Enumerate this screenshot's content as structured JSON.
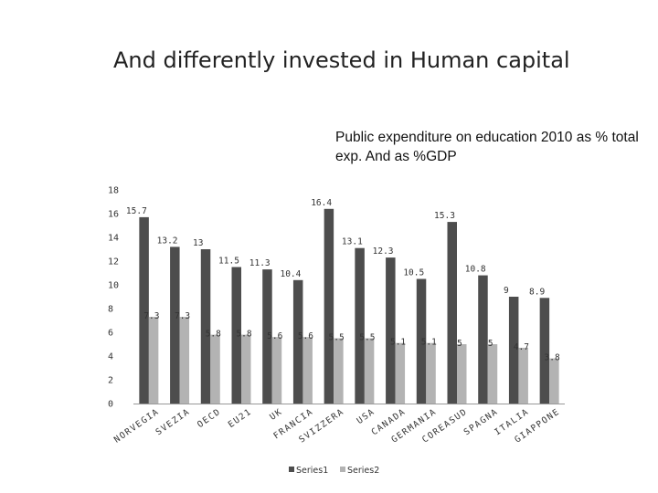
{
  "page": {
    "title": "And differently invested in Human capital",
    "annotation": "Public expenditure on education 2010 as % total exp. And as %GDP"
  },
  "colors": {
    "series1": "#4d4d4d",
    "series2": "#b3b3b3"
  },
  "chart_data": {
    "type": "bar",
    "title": "",
    "xlabel": "",
    "ylabel": "",
    "ylim": [
      0,
      18
    ],
    "yticks": [
      0,
      2,
      4,
      6,
      8,
      10,
      12,
      14,
      16,
      18
    ],
    "grid": false,
    "legend": "bottom",
    "categories": [
      "NORVEGIA",
      "SVEZIA",
      "OECD",
      "EU21",
      "UK",
      "FRANCIA",
      "SVIZZERA",
      "USA",
      "CANADA",
      "GERMANIA",
      "COREASUD",
      "SPAGNA",
      "ITALIA",
      "GIAPPONE"
    ],
    "series": [
      {
        "name": "Series1",
        "values": [
          15.7,
          13.2,
          13,
          11.5,
          11.3,
          10.4,
          16.4,
          13.1,
          12.3,
          10.5,
          15.3,
          10.8,
          9,
          8.9
        ]
      },
      {
        "name": "Series2",
        "values": [
          7.3,
          7.3,
          5.8,
          5.8,
          5.6,
          5.6,
          5.5,
          5.5,
          5.1,
          5.1,
          5,
          5,
          4.7,
          3.8
        ]
      }
    ]
  }
}
